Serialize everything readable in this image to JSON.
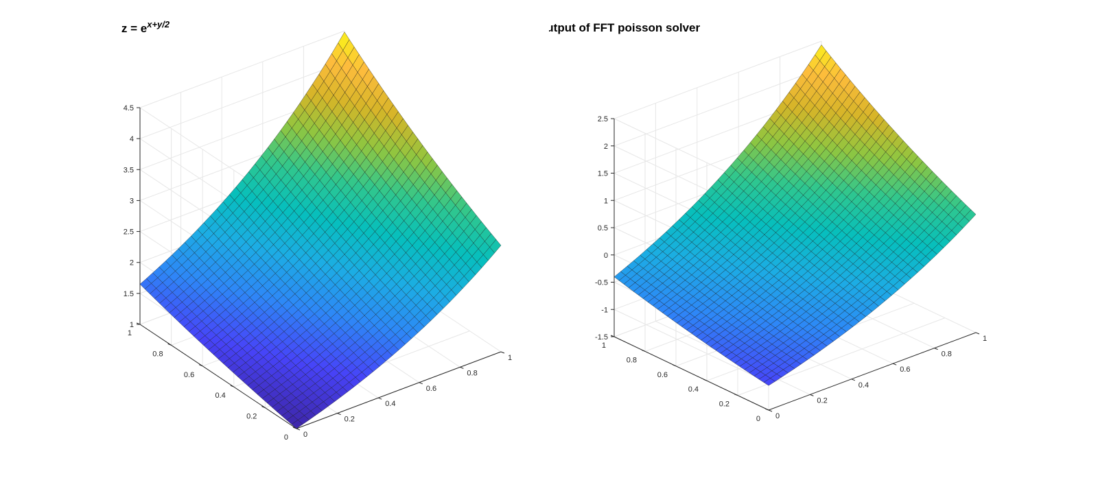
{
  "chart_data": [
    {
      "type": "surface",
      "title_base": "z = e",
      "title_sup": "x+y/2",
      "function": "exp(x + y/2)",
      "x_range": [
        0,
        1
      ],
      "y_range": [
        0,
        1
      ],
      "zlim": [
        1,
        4.5
      ],
      "grid_resolution": 32,
      "x_ticks": [
        "0",
        "0.2",
        "0.4",
        "0.6",
        "0.8",
        "1"
      ],
      "y_ticks": [
        "0",
        "0.2",
        "0.4",
        "0.6",
        "0.8",
        "1"
      ],
      "z_ticks": [
        "1",
        "1.5",
        "2",
        "2.5",
        "3",
        "3.5",
        "4",
        "4.5"
      ],
      "corner_values": {
        "x0_y0": 1.0,
        "x1_y0": 2.718,
        "x0_y1": 1.649,
        "x1_y1": 4.482
      },
      "colormap": "parula",
      "grid": true
    },
    {
      "type": "surface",
      "title": "output of FFT poisson solver",
      "function": "exp(x + y/2) - 2.05",
      "x_range": [
        0,
        1
      ],
      "y_range": [
        0,
        1
      ],
      "zlim": [
        -1.5,
        2.5
      ],
      "grid_resolution": 32,
      "x_ticks": [
        "0",
        "0.2",
        "0.4",
        "0.6",
        "0.8",
        "1"
      ],
      "y_ticks": [
        "0",
        "0.2",
        "0.4",
        "0.6",
        "0.8",
        "1"
      ],
      "z_ticks": [
        "-1.5",
        "-1",
        "-0.5",
        "0",
        "0.5",
        "1",
        "1.5",
        "2",
        "2.5"
      ],
      "corner_values": {
        "x0_y0": -1.05,
        "x1_y0": 0.67,
        "x0_y1": -0.4,
        "x1_y1": 2.43
      },
      "colormap": "parula",
      "grid": true
    }
  ],
  "colors": {
    "parula": [
      "#3e26a8",
      "#4743f8",
      "#2e87f7",
      "#1cade4",
      "#06bfbd",
      "#30c78e",
      "#8ec641",
      "#d6b528",
      "#fdbc3c",
      "#f9fb15"
    ],
    "edge": "#1a1a1a"
  }
}
